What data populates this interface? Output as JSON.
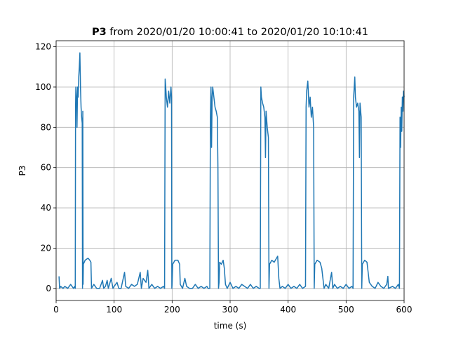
{
  "chart_data": {
    "type": "line",
    "title": [
      "P3",
      "from 2020/01/20 10:00:41 to 2020/01/20 10:10:41"
    ],
    "x_label": "time (s)",
    "y_label": "P3",
    "xlim": [
      0,
      600
    ],
    "xticks": [
      0,
      100,
      200,
      300,
      400,
      500,
      600
    ],
    "ylim": [
      -6,
      123
    ],
    "yticks": [
      0,
      20,
      40,
      60,
      80,
      100,
      120
    ],
    "grid": true,
    "series": [
      {
        "color": "#1f77b4",
        "x": [
          5,
          6,
          8,
          12,
          15,
          20,
          25,
          30,
          32,
          33,
          33.5,
          34,
          35,
          36,
          37,
          38,
          39,
          40,
          41,
          42,
          43,
          44,
          45,
          45.5,
          46,
          46.5,
          47,
          50,
          55,
          58,
          60,
          61,
          65,
          70,
          75,
          80,
          82,
          85,
          88,
          90,
          95,
          98,
          100,
          105,
          108,
          112,
          118,
          120,
          125,
          130,
          135,
          140,
          145,
          147,
          150,
          155,
          158,
          160,
          165,
          170,
          175,
          180,
          185,
          187,
          188,
          189,
          190,
          192,
          194,
          196,
          198,
          199,
          199.5,
          200,
          201,
          205,
          210,
          213,
          214,
          218,
          222,
          225,
          230,
          235,
          240,
          245,
          250,
          255,
          260,
          262,
          265,
          266,
          267,
          268,
          269,
          270,
          272,
          274,
          276,
          278,
          279,
          280,
          281,
          282,
          285,
          288,
          290,
          292,
          295,
          300,
          305,
          310,
          315,
          320,
          325,
          330,
          335,
          340,
          345,
          350,
          352,
          353,
          354,
          356,
          358,
          360,
          361,
          362,
          364,
          366,
          367,
          368,
          372,
          376,
          380,
          382,
          384,
          386,
          390,
          395,
          400,
          405,
          410,
          415,
          420,
          425,
          430,
          431,
          432,
          434,
          436,
          438,
          440,
          442,
          444,
          445,
          446,
          450,
          455,
          458,
          460,
          462,
          465,
          470,
          475,
          477,
          480,
          485,
          490,
          495,
          500,
          505,
          510,
          512,
          513,
          514,
          515,
          516,
          518,
          520,
          522,
          523,
          524,
          526,
          527,
          528,
          532,
          536,
          540,
          545,
          550,
          555,
          560,
          565,
          570,
          572,
          573,
          580,
          585,
          590,
          592,
          593,
          594,
          595,
          596,
          597,
          598,
          599,
          600
        ],
        "values": [
          6,
          0,
          1,
          0,
          1,
          0,
          2,
          0,
          1,
          0,
          90,
          100,
          95,
          80,
          100,
          95,
          105,
          110,
          117,
          100,
          90,
          85,
          82,
          0,
          88,
          2,
          12,
          14,
          15,
          14,
          13,
          0,
          2,
          0,
          0,
          4,
          0,
          1,
          4,
          0,
          5,
          0,
          1,
          3,
          0,
          0,
          8,
          1,
          0,
          2,
          1,
          2,
          8,
          0,
          5,
          3,
          9,
          0,
          2,
          0,
          1,
          0,
          1,
          0,
          104,
          100,
          95,
          90,
          98,
          92,
          100,
          95,
          0,
          2,
          12,
          14,
          14,
          12,
          2,
          0,
          5,
          1,
          0,
          0,
          2,
          0,
          1,
          0,
          1,
          0,
          0,
          85,
          100,
          70,
          95,
          100,
          95,
          90,
          88,
          85,
          60,
          0,
          3,
          13,
          12,
          14,
          10,
          2,
          0,
          3,
          0,
          1,
          0,
          2,
          1,
          0,
          2,
          0,
          1,
          0,
          0,
          100,
          95,
          92,
          90,
          85,
          65,
          88,
          80,
          75,
          0,
          12,
          14,
          13,
          15,
          16,
          5,
          0,
          1,
          0,
          2,
          0,
          1,
          0,
          2,
          0,
          1,
          90,
          98,
          103,
          90,
          95,
          85,
          90,
          80,
          0,
          12,
          14,
          13,
          10,
          5,
          0,
          2,
          0,
          8,
          0,
          2,
          0,
          1,
          0,
          2,
          0,
          1,
          0,
          95,
          100,
          105,
          95,
          90,
          92,
          88,
          65,
          92,
          85,
          0,
          12,
          14,
          13,
          3,
          1,
          0,
          3,
          1,
          0,
          2,
          6,
          0,
          1,
          0,
          2,
          0,
          85,
          70,
          90,
          78,
          95,
          88,
          98,
          95
        ]
      }
    ]
  }
}
